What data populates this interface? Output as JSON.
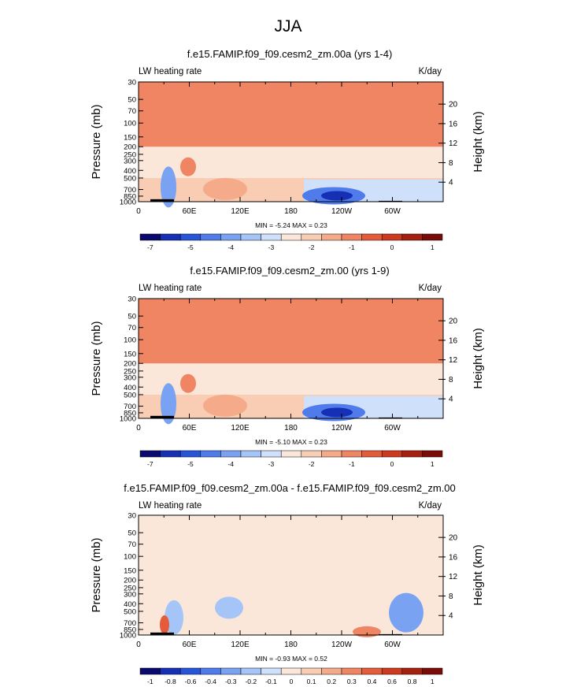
{
  "figure": {
    "title": "JJA"
  },
  "chart_data": [
    {
      "type": "heatmap",
      "title": "f.e15.FAMIP.f09_f09.cesm2_zm.00a (yrs 1-4)",
      "left_label": "LW heating rate",
      "right_label": "K/day",
      "ylabel": "Pressure (mb)",
      "ylabel_right": "Height (km)",
      "x_ticks": [
        "0",
        "60E",
        "120E",
        "180",
        "120W",
        "60W"
      ],
      "y_ticks": [
        "30",
        "50",
        "70",
        "100",
        "150",
        "200",
        "250",
        "300",
        "400",
        "500",
        "700",
        "850",
        "1000"
      ],
      "height_ticks": [
        "20",
        "16",
        "12",
        "8",
        "4"
      ],
      "stats": "MIN =  -5.24  MAX =   0.23",
      "colorbar_labels": [
        "-7",
        "-5",
        "-4",
        "-3",
        "-2",
        "-1",
        "0",
        "1"
      ],
      "colorbar_colors": [
        "#0a0a6e",
        "#1530b4",
        "#2855d8",
        "#4f7cea",
        "#7aa2f2",
        "#a5c5f8",
        "#cfe0fb",
        "#fbe7da",
        "#f9ccb4",
        "#f5ab8a",
        "#ef8563",
        "#e45c3c",
        "#cc3a1f",
        "#a5200f",
        "#7a0c08"
      ],
      "ylim": [
        1000,
        30
      ]
    },
    {
      "type": "heatmap",
      "title": "f.e15.FAMIP.f09_f09.cesm2_zm.00 (yrs 1-9)",
      "left_label": "LW heating rate",
      "right_label": "K/day",
      "ylabel": "Pressure (mb)",
      "ylabel_right": "Height (km)",
      "x_ticks": [
        "0",
        "60E",
        "120E",
        "180",
        "120W",
        "60W"
      ],
      "y_ticks": [
        "30",
        "50",
        "70",
        "100",
        "150",
        "200",
        "250",
        "300",
        "400",
        "500",
        "700",
        "850",
        "1000"
      ],
      "height_ticks": [
        "20",
        "16",
        "12",
        "8",
        "4"
      ],
      "stats": "MIN =  -5.10  MAX =   0.23",
      "colorbar_labels": [
        "-7",
        "-5",
        "-4",
        "-3",
        "-2",
        "-1",
        "0",
        "1"
      ],
      "colorbar_colors": [
        "#0a0a6e",
        "#1530b4",
        "#2855d8",
        "#4f7cea",
        "#7aa2f2",
        "#a5c5f8",
        "#cfe0fb",
        "#fbe7da",
        "#f9ccb4",
        "#f5ab8a",
        "#ef8563",
        "#e45c3c",
        "#cc3a1f",
        "#a5200f",
        "#7a0c08"
      ],
      "ylim": [
        1000,
        30
      ]
    },
    {
      "type": "heatmap",
      "title": "f.e15.FAMIP.f09_f09.cesm2_zm.00a - f.e15.FAMIP.f09_f09.cesm2_zm.00",
      "left_label": "LW heating rate",
      "right_label": "K/day",
      "ylabel": "Pressure (mb)",
      "ylabel_right": "Height (km)",
      "x_ticks": [
        "0",
        "60E",
        "120E",
        "180",
        "120W",
        "60W"
      ],
      "y_ticks": [
        "30",
        "50",
        "70",
        "100",
        "150",
        "200",
        "250",
        "300",
        "400",
        "500",
        "700",
        "850",
        "1000"
      ],
      "height_ticks": [
        "20",
        "16",
        "12",
        "8",
        "4"
      ],
      "stats": "MIN =  -0.93  MAX =   0.52",
      "colorbar_labels": [
        "-1",
        "-0.8",
        "-0.6",
        "-0.4",
        "-0.3",
        "-0.2",
        "-0.1",
        "0",
        "0.1",
        "0.2",
        "0.3",
        "0.4",
        "0.6",
        "0.8",
        "1"
      ],
      "colorbar_colors": [
        "#0a0a6e",
        "#1530b4",
        "#2855d8",
        "#4f7cea",
        "#7aa2f2",
        "#a5c5f8",
        "#cfe0fb",
        "#fbe7da",
        "#f9ccb4",
        "#f5ab8a",
        "#ef8563",
        "#e45c3c",
        "#cc3a1f",
        "#a5200f",
        "#7a0c08"
      ],
      "ylim": [
        1000,
        30
      ]
    }
  ]
}
